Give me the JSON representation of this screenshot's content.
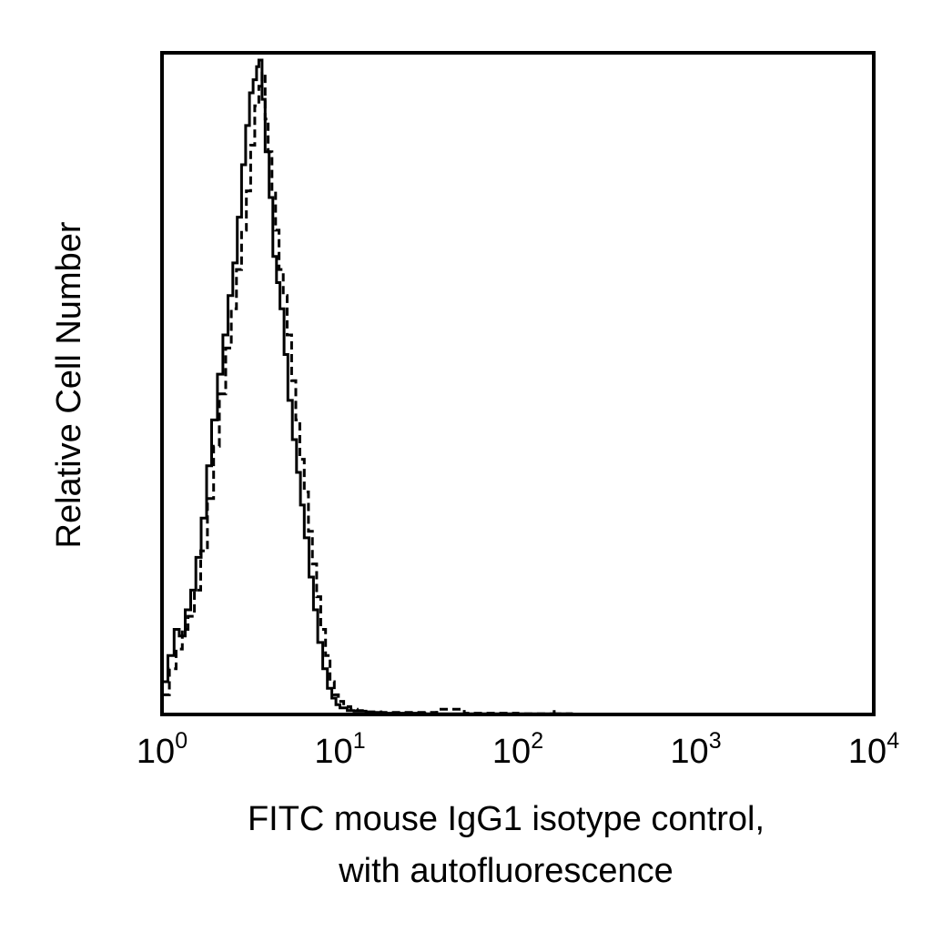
{
  "chart_data": {
    "type": "line",
    "xscale": "log",
    "xlim": [
      1,
      10000
    ],
    "ylim": [
      0,
      100
    ],
    "grid": false,
    "xticks": [
      {
        "value": 1,
        "base": "10",
        "exp": "0"
      },
      {
        "value": 10,
        "base": "10",
        "exp": "1"
      },
      {
        "value": 100,
        "base": "10",
        "exp": "2"
      },
      {
        "value": 1000,
        "base": "10",
        "exp": "3"
      },
      {
        "value": 10000,
        "base": "10",
        "exp": "4"
      }
    ],
    "ylabel": "Relative Cell Number",
    "xlabel_lines": [
      "FITC mouse IgG1 isotype control,",
      "with autofluorescence"
    ],
    "series": [
      {
        "style": "solid",
        "color": "#000000",
        "x": [
          1.0,
          1.08,
          1.17,
          1.25,
          1.35,
          1.45,
          1.55,
          1.66,
          1.78,
          1.9,
          2.05,
          2.2,
          2.35,
          2.5,
          2.65,
          2.8,
          2.95,
          3.1,
          3.25,
          3.4,
          3.5,
          3.65,
          3.8,
          4.0,
          4.2,
          4.4,
          4.6,
          4.85,
          5.1,
          5.4,
          5.7,
          6.0,
          6.3,
          6.7,
          7.1,
          7.5,
          8.0,
          8.5,
          9.0,
          9.5,
          10.0,
          11.0,
          12.0,
          14.0,
          17.0,
          20.0,
          30.0,
          50.0,
          100.0,
          200.0,
          1000.0,
          10000.0
        ],
        "y": [
          5,
          9,
          13,
          12,
          16,
          19,
          24,
          30,
          38,
          45,
          52,
          58,
          64,
          69,
          76,
          84,
          90,
          95,
          97,
          99,
          100,
          94,
          86,
          79,
          70,
          66,
          62,
          55,
          48,
          42,
          37,
          32,
          27,
          21,
          16,
          11,
          7,
          4,
          2.5,
          1.5,
          1,
          0.6,
          0.5,
          0.3,
          0.2,
          0.2,
          0.1,
          0.1,
          0.1,
          0,
          0,
          0
        ]
      },
      {
        "style": "dashed",
        "color": "#000000",
        "x": [
          1.0,
          1.1,
          1.2,
          1.3,
          1.4,
          1.52,
          1.65,
          1.8,
          1.95,
          2.1,
          2.28,
          2.45,
          2.62,
          2.8,
          2.98,
          3.15,
          3.32,
          3.5,
          3.65,
          3.8,
          3.95,
          4.15,
          4.35,
          4.55,
          4.8,
          5.05,
          5.35,
          5.65,
          5.95,
          6.3,
          6.65,
          7.0,
          7.4,
          7.8,
          8.3,
          8.8,
          9.3,
          9.8,
          10.5,
          11.5,
          12.5,
          14.0,
          17.0,
          20.0,
          25.0,
          35.0,
          50.0,
          100.0,
          160.0,
          161.0,
          200.0,
          1000.0,
          10000.0
        ],
        "y": [
          3,
          7,
          10,
          13,
          15,
          19,
          25,
          33,
          41,
          49,
          56,
          62,
          68,
          74,
          80,
          87,
          93,
          96,
          98,
          91,
          86,
          80,
          74,
          68,
          64,
          58,
          51,
          45,
          39,
          34,
          28,
          23,
          18,
          13,
          9,
          5,
          3,
          2,
          1.2,
          0.8,
          0.6,
          0.4,
          0.3,
          0.3,
          0.3,
          0.8,
          0.2,
          0.1,
          0.8,
          0.1,
          0,
          0,
          0
        ]
      }
    ]
  }
}
